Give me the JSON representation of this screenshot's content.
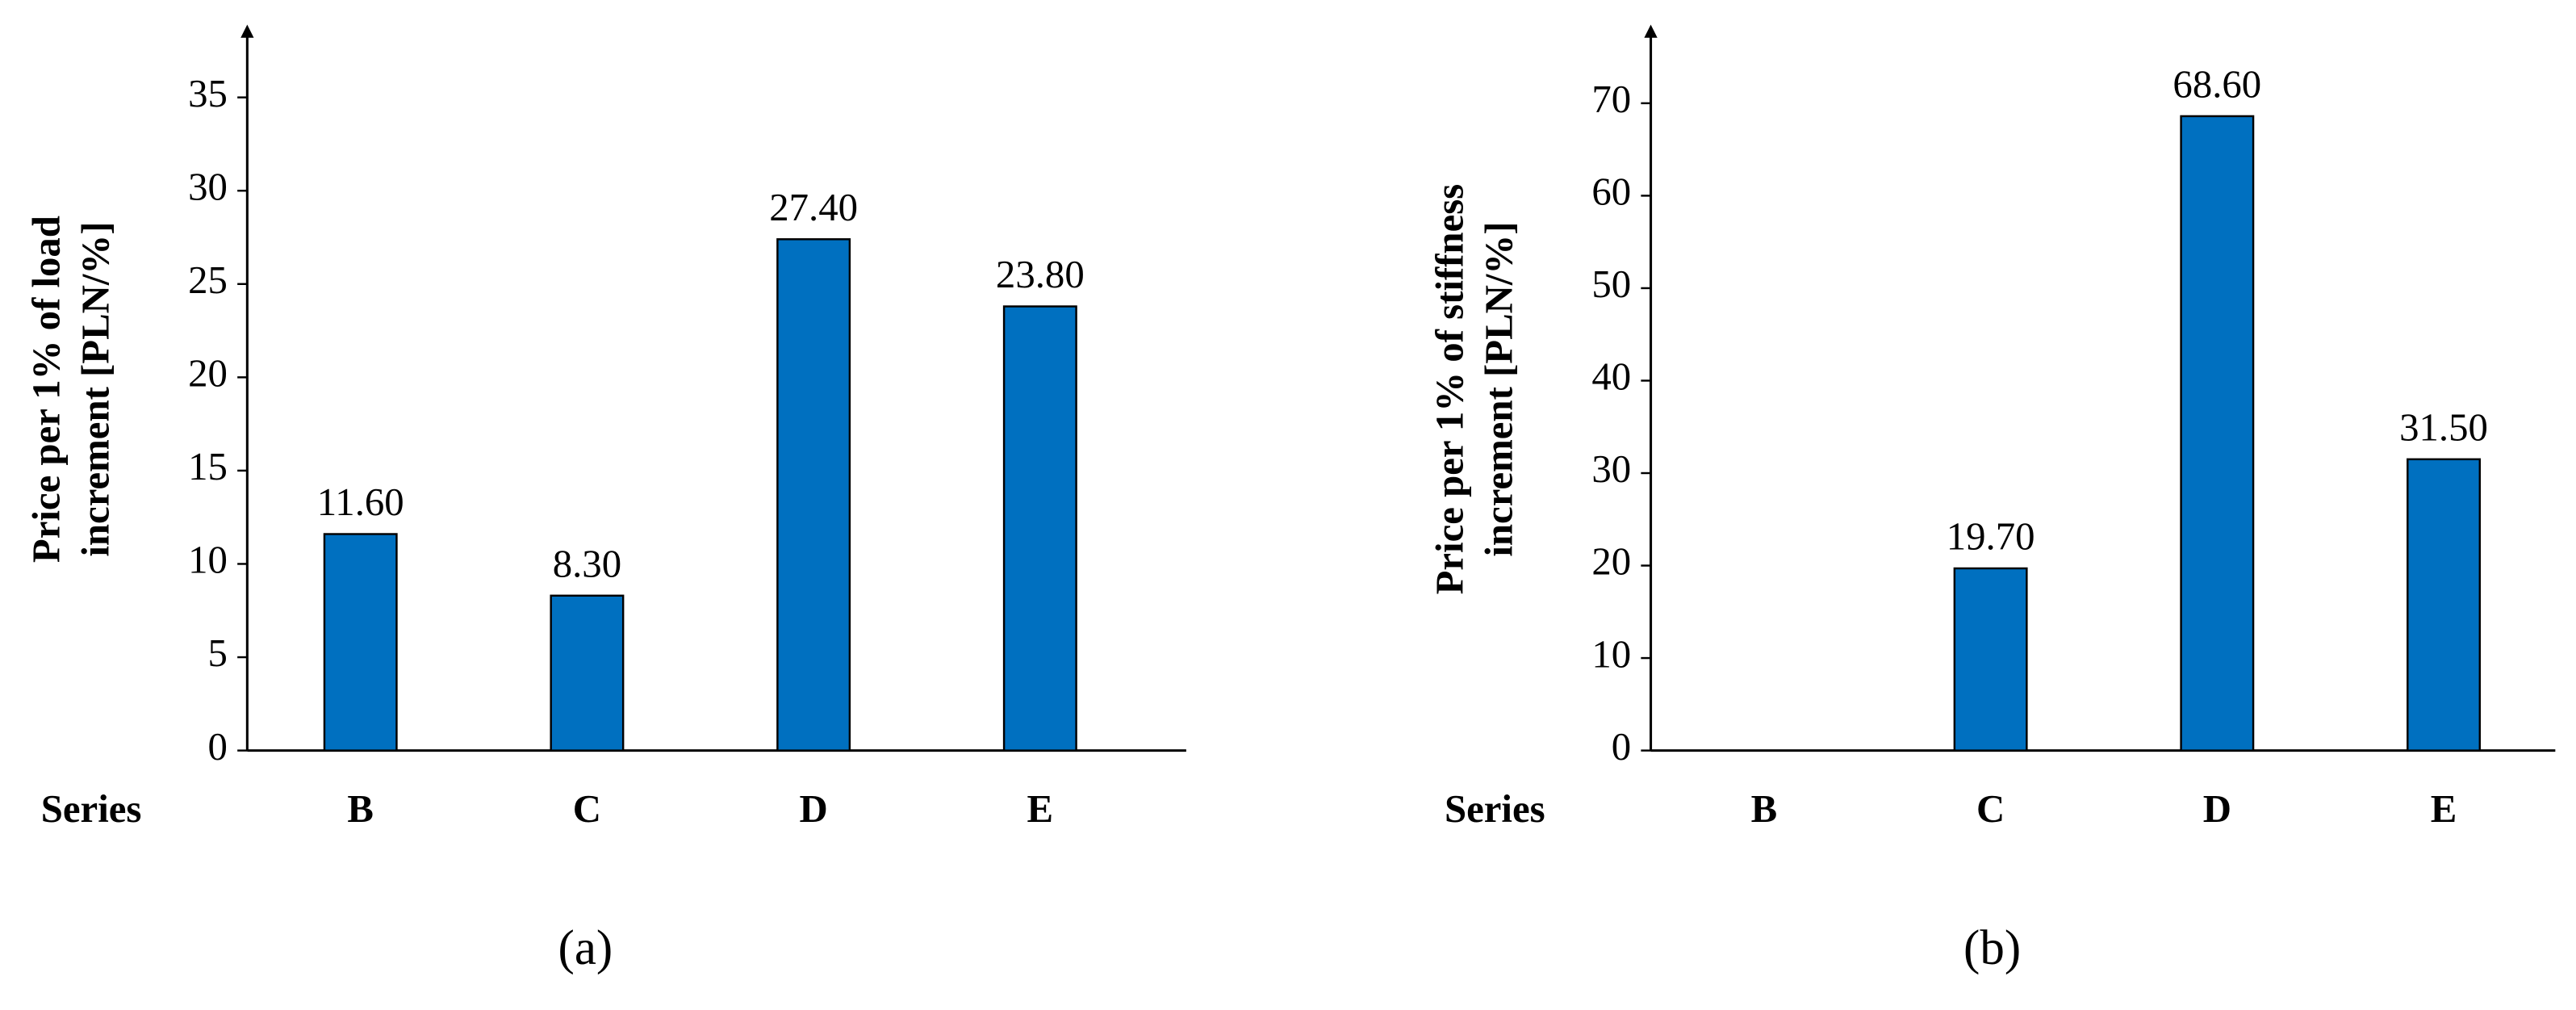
{
  "chart_data": [
    {
      "type": "bar",
      "panel_label": "(a)",
      "xlabel": "Series",
      "ylabel": [
        "Price per 1% of load",
        "increment [PLN/%]"
      ],
      "categories": [
        "B",
        "C",
        "D",
        "E"
      ],
      "values": [
        11.6,
        8.3,
        27.4,
        23.8
      ],
      "value_labels": [
        "11.60",
        "8.30",
        "27.40",
        "23.80"
      ],
      "color": "#0070c0",
      "ylim": [
        0,
        38.9
      ],
      "yticks": [
        0,
        5,
        10,
        15,
        20,
        25,
        30,
        35
      ]
    },
    {
      "type": "bar",
      "panel_label": "(b)",
      "xlabel": "Series",
      "ylabel": [
        "Price per 1% of stiffness",
        "increment [PLN/%]"
      ],
      "categories": [
        "B",
        "C",
        "D",
        "E"
      ],
      "values": [
        null,
        19.7,
        68.6,
        31.5
      ],
      "value_labels": [
        null,
        "19.70",
        "68.60",
        "31.50"
      ],
      "color": "#0070c0",
      "ylim": [
        0,
        78.5
      ],
      "yticks": [
        0,
        10,
        20,
        30,
        40,
        50,
        60,
        70
      ]
    }
  ]
}
